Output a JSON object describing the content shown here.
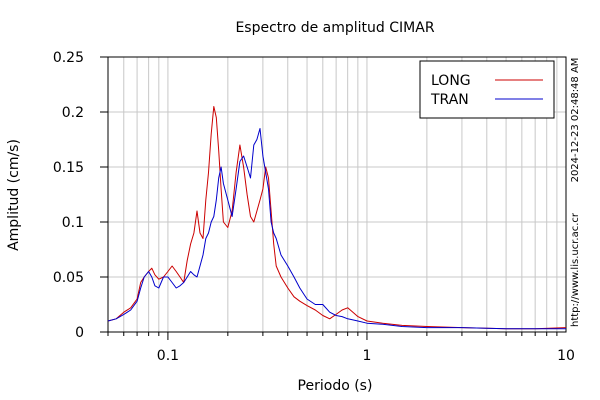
{
  "chart_data": {
    "type": "line",
    "title": "Espectro de amplitud CIMAR",
    "xlabel": "Periodo (s)",
    "ylabel": "Amplitud (cm/s)",
    "x_scale": "log",
    "xlim": [
      0.05,
      10
    ],
    "ylim": [
      0,
      0.25
    ],
    "grid": true,
    "legend_position": "top-right",
    "x_ticks": [
      {
        "value": 0.1,
        "label": "0.1"
      },
      {
        "value": 1,
        "label": "1"
      },
      {
        "value": 10,
        "label": "10"
      }
    ],
    "y_ticks": [
      {
        "value": 0,
        "label": "0"
      },
      {
        "value": 0.05,
        "label": "0.05"
      },
      {
        "value": 0.1,
        "label": "0.1"
      },
      {
        "value": 0.15,
        "label": "0.15"
      },
      {
        "value": 0.2,
        "label": "0.2"
      },
      {
        "value": 0.25,
        "label": "0.25"
      }
    ],
    "series": [
      {
        "name": "LONG",
        "color": "#cc0000",
        "x": [
          0.05,
          0.055,
          0.06,
          0.065,
          0.07,
          0.073,
          0.076,
          0.08,
          0.083,
          0.086,
          0.09,
          0.095,
          0.1,
          0.105,
          0.11,
          0.115,
          0.12,
          0.125,
          0.13,
          0.135,
          0.14,
          0.145,
          0.15,
          0.155,
          0.16,
          0.165,
          0.17,
          0.175,
          0.18,
          0.185,
          0.19,
          0.2,
          0.21,
          0.22,
          0.23,
          0.24,
          0.25,
          0.26,
          0.27,
          0.28,
          0.29,
          0.3,
          0.31,
          0.32,
          0.33,
          0.34,
          0.35,
          0.37,
          0.4,
          0.43,
          0.46,
          0.5,
          0.55,
          0.6,
          0.65,
          0.7,
          0.75,
          0.8,
          0.85,
          0.9,
          1.0,
          1.2,
          1.5,
          2.0,
          3.0,
          5.0,
          7.0,
          10.0
        ],
        "y": [
          0.01,
          0.012,
          0.018,
          0.022,
          0.03,
          0.045,
          0.05,
          0.055,
          0.058,
          0.052,
          0.048,
          0.05,
          0.055,
          0.06,
          0.055,
          0.05,
          0.045,
          0.065,
          0.08,
          0.09,
          0.11,
          0.09,
          0.085,
          0.12,
          0.145,
          0.18,
          0.205,
          0.195,
          0.165,
          0.13,
          0.1,
          0.095,
          0.11,
          0.145,
          0.17,
          0.15,
          0.125,
          0.105,
          0.1,
          0.11,
          0.12,
          0.13,
          0.15,
          0.14,
          0.11,
          0.08,
          0.06,
          0.05,
          0.04,
          0.032,
          0.028,
          0.024,
          0.02,
          0.015,
          0.012,
          0.016,
          0.02,
          0.022,
          0.018,
          0.014,
          0.01,
          0.008,
          0.006,
          0.005,
          0.004,
          0.003,
          0.003,
          0.004
        ]
      },
      {
        "name": "TRAN",
        "color": "#0000cc",
        "x": [
          0.05,
          0.055,
          0.06,
          0.065,
          0.07,
          0.073,
          0.076,
          0.08,
          0.083,
          0.086,
          0.09,
          0.095,
          0.1,
          0.105,
          0.11,
          0.115,
          0.12,
          0.125,
          0.13,
          0.135,
          0.14,
          0.145,
          0.15,
          0.155,
          0.16,
          0.165,
          0.17,
          0.175,
          0.18,
          0.185,
          0.19,
          0.2,
          0.21,
          0.22,
          0.23,
          0.24,
          0.25,
          0.26,
          0.27,
          0.28,
          0.29,
          0.3,
          0.31,
          0.32,
          0.33,
          0.34,
          0.35,
          0.37,
          0.4,
          0.43,
          0.46,
          0.5,
          0.55,
          0.6,
          0.65,
          0.7,
          0.75,
          0.8,
          0.85,
          0.9,
          1.0,
          1.2,
          1.5,
          2.0,
          3.0,
          5.0,
          7.0,
          10.0
        ],
        "y": [
          0.01,
          0.012,
          0.016,
          0.02,
          0.028,
          0.04,
          0.05,
          0.055,
          0.05,
          0.042,
          0.04,
          0.05,
          0.05,
          0.045,
          0.04,
          0.042,
          0.045,
          0.05,
          0.055,
          0.052,
          0.05,
          0.06,
          0.07,
          0.085,
          0.09,
          0.1,
          0.105,
          0.12,
          0.14,
          0.15,
          0.135,
          0.12,
          0.105,
          0.13,
          0.155,
          0.16,
          0.15,
          0.14,
          0.17,
          0.175,
          0.185,
          0.16,
          0.145,
          0.13,
          0.1,
          0.09,
          0.085,
          0.07,
          0.06,
          0.05,
          0.04,
          0.03,
          0.025,
          0.025,
          0.018,
          0.015,
          0.014,
          0.012,
          0.011,
          0.01,
          0.008,
          0.007,
          0.005,
          0.004,
          0.004,
          0.003,
          0.003,
          0.003
        ]
      }
    ],
    "side_texts": {
      "timestamp": "2024-12-23 02:48:48 AM",
      "website": "http://www.lis.ucr.ac.cr"
    }
  }
}
